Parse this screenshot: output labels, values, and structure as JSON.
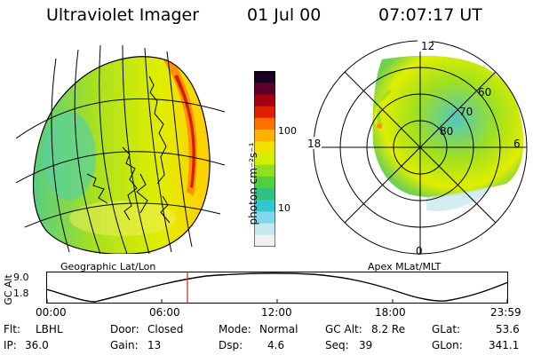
{
  "header": {
    "title": "Ultraviolet Imager",
    "date": "01 Jul 00",
    "time": "07:07:17 UT"
  },
  "left_panel": {
    "caption": "Geographic Lat/Lon"
  },
  "right_panel": {
    "caption": "Apex MLat/MLT",
    "mlt_labels": [
      "12",
      "18",
      "6",
      "0"
    ],
    "lat_labels": [
      "60",
      "70",
      "80"
    ]
  },
  "colorbar": {
    "unit_label": "photon cm⁻²s⁻¹",
    "ticks": [
      "100",
      "10"
    ],
    "colors": [
      "#1a0020",
      "#5a0028",
      "#a40010",
      "#e02000",
      "#ff7000",
      "#ffb000",
      "#f0e000",
      "#d0f000",
      "#90e020",
      "#50d040",
      "#30c080",
      "#30c8d0",
      "#80d8e8",
      "#c8e8f0",
      "#f0f0f0"
    ]
  },
  "timeline": {
    "axis_title": "GC Alt",
    "ytick_labels": [
      "9.0",
      "1.8"
    ],
    "xtick_labels": [
      "00:00",
      "06:00",
      "12:00",
      "18:00",
      "23:59"
    ],
    "marker_color": "#e02020"
  },
  "info": {
    "flt_label": "Flt:",
    "flt_value": "LBHL",
    "ip_label": "IP:",
    "ip_value": "36.0",
    "door_label": "Door:",
    "door_value": "Closed",
    "gain_label": "Gain:",
    "gain_value": "13",
    "mode_label": "Mode:",
    "mode_value": "Normal",
    "dsp_label": "Dsp:",
    "dsp_value": "4.6",
    "gcalt_label": "GC Alt:",
    "gcalt_value": "8.2 Re",
    "seq_label": "Seq:",
    "seq_value": "39",
    "glat_label": "GLat:",
    "glat_value": "53.6",
    "glon_label": "GLon:",
    "glon_value": "341.1"
  }
}
